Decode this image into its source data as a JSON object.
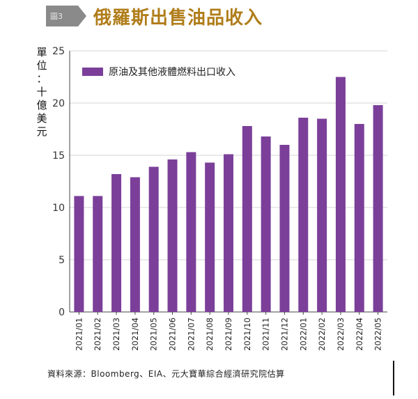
{
  "header": {
    "badge": "圖3",
    "title": "俄羅斯出售油品收入"
  },
  "colors": {
    "bar": "#7b3f99",
    "title": "#b07d1a",
    "badge": "#8a8a8a",
    "grid": "#d4d4d4"
  },
  "chart_data": {
    "type": "bar",
    "ylabel_chars": [
      "單",
      "位",
      "：",
      "十",
      "億",
      "美",
      "元"
    ],
    "categories": [
      "2021/01",
      "2021/02",
      "2021/03",
      "2021/04",
      "2021/05",
      "2021/06",
      "2021/07",
      "2021/08",
      "2021/09",
      "2021/10",
      "2021/11",
      "2021/12",
      "2022/01",
      "2022/02",
      "2022/03",
      "2022/04",
      "2022/05"
    ],
    "series": [
      {
        "name": "原油及其他液體燃料出口收入",
        "values": [
          11.1,
          11.1,
          13.2,
          12.9,
          13.9,
          14.6,
          15.3,
          14.3,
          15.1,
          17.8,
          16.8,
          16.0,
          18.6,
          18.5,
          22.5,
          18.0,
          19.8
        ]
      }
    ],
    "ylim": [
      0,
      25
    ],
    "yticks": [
      0,
      5,
      10,
      15,
      20,
      25
    ],
    "grid": true,
    "legend_position": "top-left"
  },
  "footer": {
    "source": "資料來源：Bloomberg、EIA、元大寶華綜合經濟研究院估算"
  }
}
